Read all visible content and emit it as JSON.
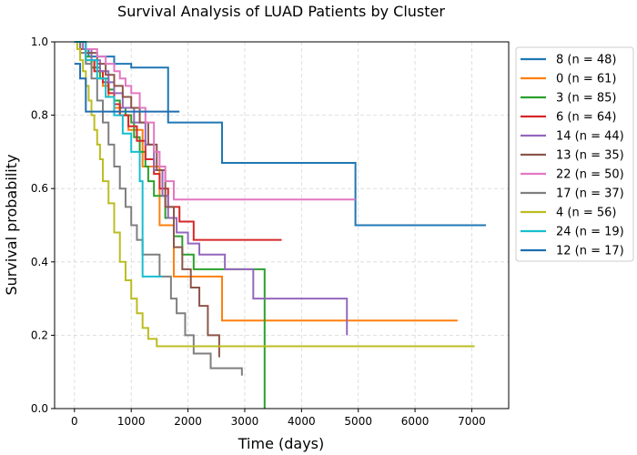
{
  "chart_data": {
    "type": "line",
    "step": true,
    "title": "Survival Analysis of LUAD Patients by Cluster",
    "xlabel": "Time (days)",
    "ylabel": "Survival probability",
    "xlim": [
      -350,
      7650
    ],
    "ylim": [
      0,
      1
    ],
    "xticks": [
      0,
      1000,
      2000,
      3000,
      4000,
      5000,
      6000,
      7000
    ],
    "xtick_labels": [
      "0",
      "1000",
      "2000",
      "3000",
      "4000",
      "5000",
      "6000",
      "7000"
    ],
    "yticks": [
      0,
      0.2,
      0.4,
      0.6,
      0.8,
      1.0
    ],
    "ytick_labels": [
      "0.0",
      "0.2",
      "0.4",
      "0.6",
      "0.8",
      "1.0"
    ],
    "grid": true,
    "legend_position": "upper-right-outside",
    "series": [
      {
        "name": "8 (n = 48)",
        "color": "#1f77b4",
        "x": [
          0,
          100,
          250,
          700,
          1000,
          1650,
          2600,
          4950,
          7250
        ],
        "y": [
          1.0,
          0.98,
          0.96,
          0.94,
          0.93,
          0.78,
          0.67,
          0.5,
          0.5
        ]
      },
      {
        "name": "0 (n = 61)",
        "color": "#ff7f0e",
        "x": [
          0,
          100,
          200,
          350,
          500,
          600,
          700,
          800,
          950,
          1200,
          1500,
          1750,
          2600,
          6750
        ],
        "y": [
          1.0,
          0.98,
          0.95,
          0.92,
          0.88,
          0.85,
          0.82,
          0.8,
          0.76,
          0.66,
          0.5,
          0.36,
          0.24,
          0.24
        ]
      },
      {
        "name": "3 (n = 85)",
        "color": "#2ca02c",
        "x": [
          0,
          100,
          200,
          300,
          450,
          600,
          700,
          800,
          900,
          1000,
          1050,
          1150,
          1250,
          1300,
          1400,
          1600,
          1750,
          1900,
          2100,
          3350,
          3350
        ],
        "y": [
          1.0,
          0.98,
          0.96,
          0.93,
          0.9,
          0.87,
          0.84,
          0.82,
          0.8,
          0.78,
          0.74,
          0.7,
          0.66,
          0.62,
          0.58,
          0.52,
          0.47,
          0.42,
          0.38,
          0.38,
          0.0
        ]
      },
      {
        "name": "6 (n = 64)",
        "color": "#d62728",
        "x": [
          0,
          100,
          200,
          350,
          500,
          600,
          700,
          800,
          950,
          1100,
          1250,
          1400,
          1500,
          1650,
          1850,
          2100,
          3650
        ],
        "y": [
          1.0,
          0.98,
          0.95,
          0.92,
          0.89,
          0.86,
          0.83,
          0.8,
          0.77,
          0.73,
          0.68,
          0.64,
          0.6,
          0.55,
          0.51,
          0.46,
          0.46
        ]
      },
      {
        "name": "14 (n = 44)",
        "color": "#9467bd",
        "x": [
          0,
          150,
          300,
          450,
          600,
          700,
          850,
          1050,
          1250,
          1400,
          1550,
          1650,
          1800,
          2000,
          2200,
          2650,
          3150,
          4800
        ],
        "y": [
          1.0,
          0.98,
          0.95,
          0.92,
          0.89,
          0.86,
          0.82,
          0.78,
          0.72,
          0.65,
          0.58,
          0.52,
          0.48,
          0.45,
          0.42,
          0.38,
          0.3,
          0.2
        ]
      },
      {
        "name": "13 (n = 35)",
        "color": "#8c564b",
        "x": [
          0,
          200,
          400,
          550,
          700,
          850,
          1000,
          1150,
          1300,
          1450,
          1600,
          1750,
          1900,
          2050,
          2200,
          2350,
          2550
        ],
        "y": [
          1.0,
          0.97,
          0.94,
          0.91,
          0.88,
          0.85,
          0.82,
          0.78,
          0.72,
          0.65,
          0.55,
          0.44,
          0.38,
          0.33,
          0.28,
          0.2,
          0.14
        ]
      },
      {
        "name": "22 (n = 50)",
        "color": "#e377c2",
        "x": [
          0,
          200,
          400,
          550,
          700,
          800,
          900,
          1000,
          1150,
          1250,
          1400,
          1500,
          1600,
          1750,
          4950
        ],
        "y": [
          1.0,
          0.98,
          0.96,
          0.94,
          0.92,
          0.9,
          0.88,
          0.86,
          0.82,
          0.78,
          0.7,
          0.66,
          0.62,
          0.57,
          0.57
        ]
      },
      {
        "name": "17 (n = 37)",
        "color": "#7f7f7f",
        "x": [
          0,
          100,
          200,
          300,
          400,
          500,
          600,
          700,
          800,
          900,
          1000,
          1100,
          1200,
          1500,
          1700,
          1800,
          1950,
          2100,
          2400,
          2950
        ],
        "y": [
          1.0,
          0.97,
          0.94,
          0.9,
          0.84,
          0.78,
          0.72,
          0.66,
          0.6,
          0.55,
          0.5,
          0.46,
          0.42,
          0.36,
          0.3,
          0.26,
          0.2,
          0.15,
          0.11,
          0.09
        ]
      },
      {
        "name": "4 (n = 56)",
        "color": "#bcbd22",
        "x": [
          0,
          50,
          100,
          150,
          200,
          250,
          300,
          350,
          400,
          450,
          500,
          600,
          700,
          800,
          900,
          1000,
          1100,
          1200,
          1300,
          1450,
          2650,
          7050
        ],
        "y": [
          1.0,
          0.98,
          0.95,
          0.92,
          0.88,
          0.84,
          0.8,
          0.76,
          0.72,
          0.68,
          0.62,
          0.56,
          0.48,
          0.4,
          0.35,
          0.3,
          0.26,
          0.22,
          0.19,
          0.17,
          0.17,
          0.17
        ]
      },
      {
        "name": "24 (n = 19)",
        "color": "#17becf",
        "x": [
          0,
          200,
          400,
          550,
          700,
          850,
          1000,
          1150,
          1200,
          1400,
          1550
        ],
        "y": [
          1.0,
          0.95,
          0.9,
          0.85,
          0.8,
          0.75,
          0.7,
          0.62,
          0.36,
          0.36,
          0.36
        ]
      },
      {
        "name": "12 (n = 17)",
        "color": "#1f6fb0",
        "x": [
          0,
          100,
          200,
          1850
        ],
        "y": [
          0.94,
          0.9,
          0.81,
          0.81
        ]
      }
    ]
  }
}
